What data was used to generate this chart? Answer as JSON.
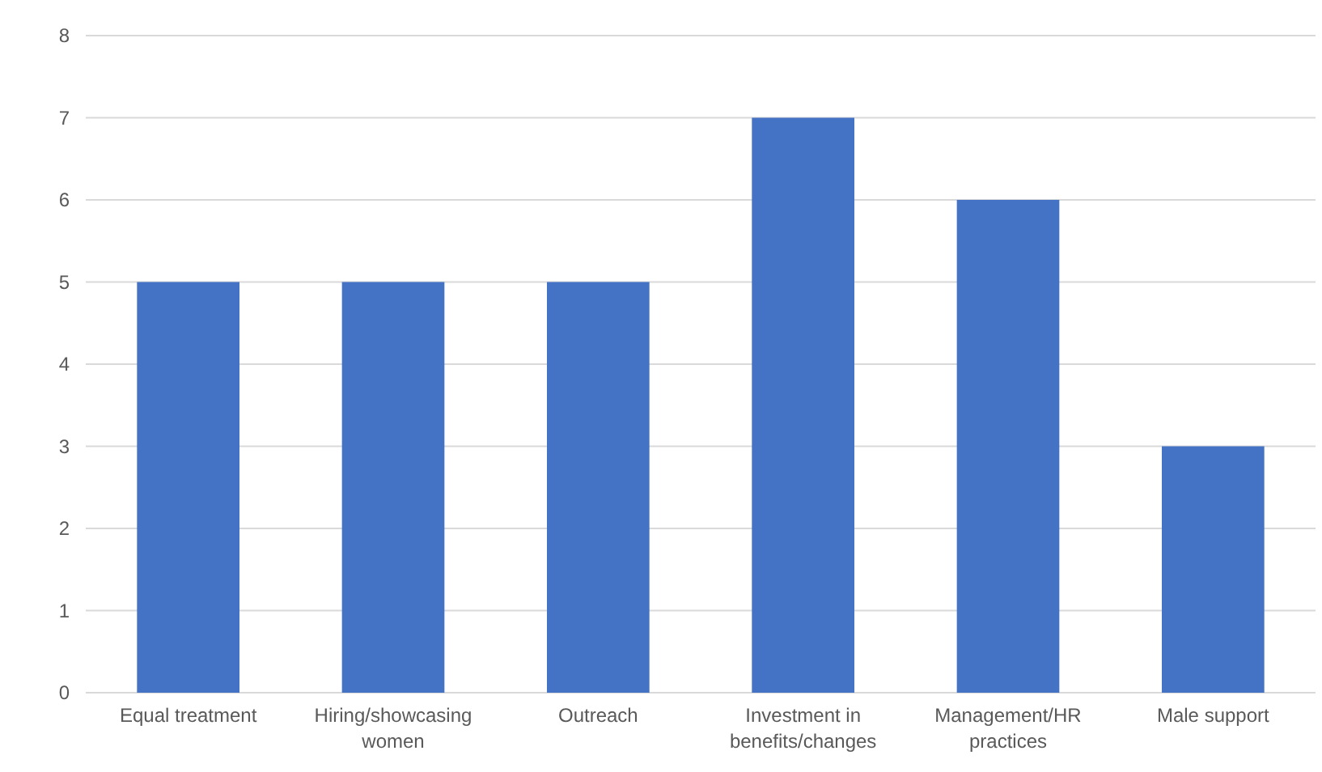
{
  "chart_data": {
    "type": "bar",
    "categories": [
      "Equal treatment",
      "Hiring/showcasing women",
      "Outreach",
      "Investment in benefits/changes",
      "Management/HR practices",
      "Male support"
    ],
    "values": [
      5,
      5,
      5,
      7,
      6,
      3
    ],
    "color": "#4472c4",
    "ylim": [
      0,
      8
    ],
    "yticks": [
      0,
      1,
      2,
      3,
      4,
      5,
      6,
      7,
      8
    ],
    "grid": "y"
  }
}
